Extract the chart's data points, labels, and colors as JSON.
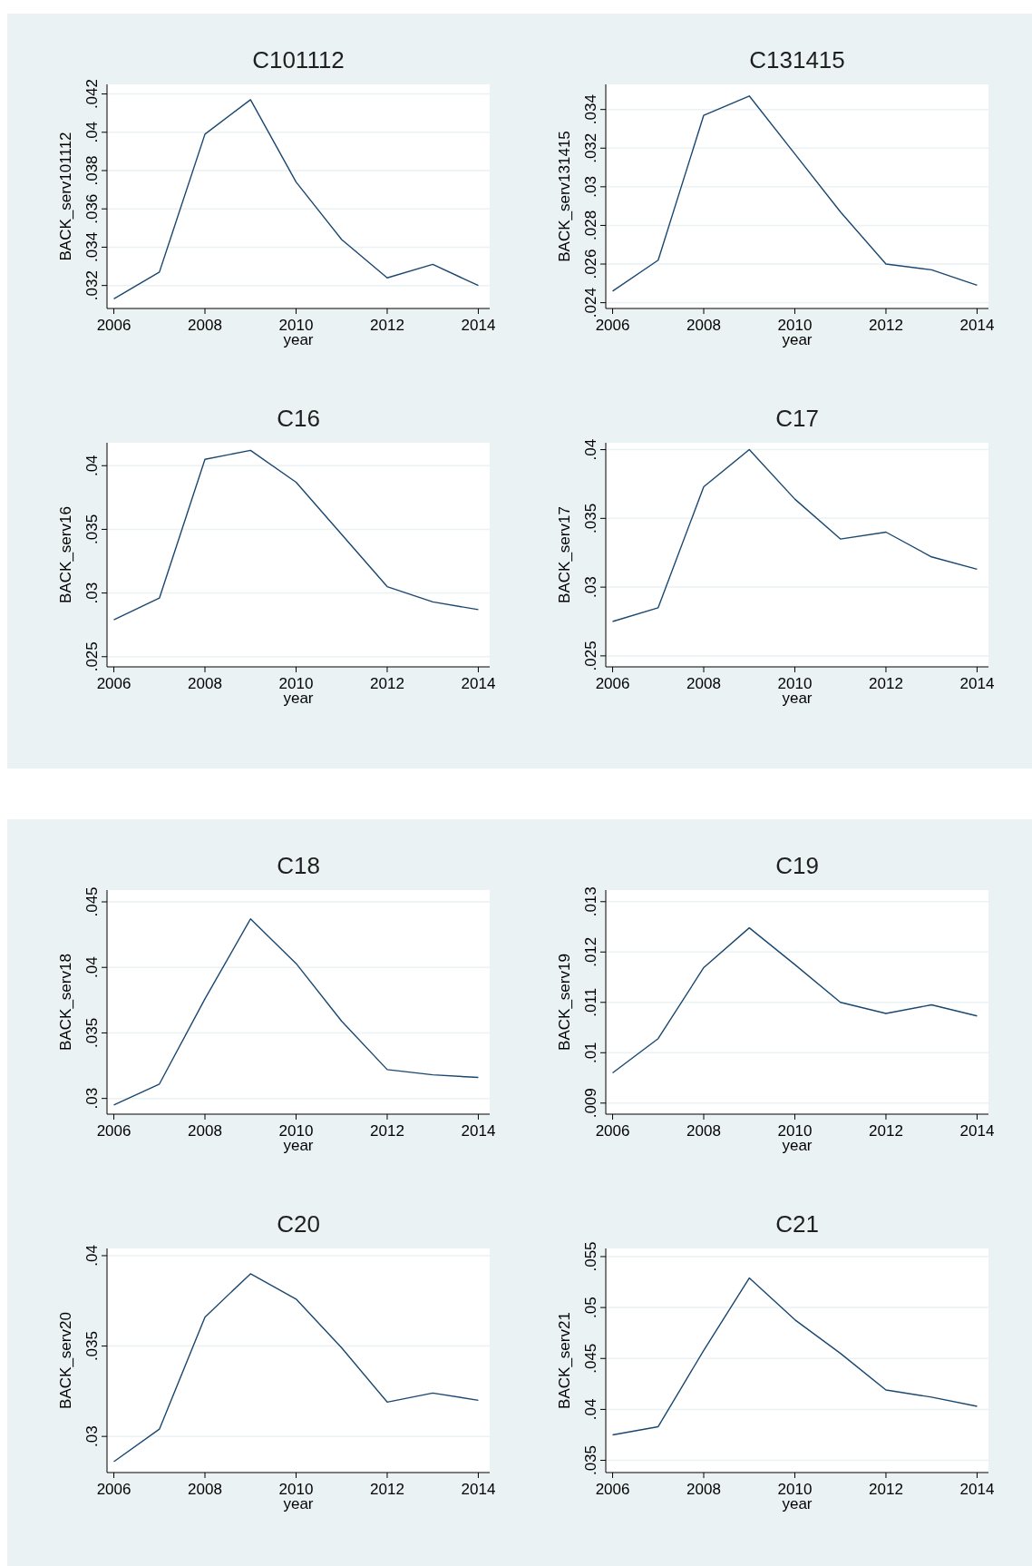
{
  "chart_data": [
    {
      "type": "line",
      "title": "C101112",
      "xlabel": "year",
      "ylabel": "BACK_serv101112",
      "x": [
        2006,
        2007,
        2008,
        2009,
        2010,
        2011,
        2012,
        2013,
        2014
      ],
      "values": [
        0.0313,
        0.0327,
        0.0399,
        0.0417,
        0.0374,
        0.0344,
        0.0324,
        0.0331,
        0.032
      ],
      "color": "#1a476f",
      "xlim": [
        2005.85,
        2014.25
      ],
      "xticks": [
        2006,
        2008,
        2010,
        2012,
        2014
      ],
      "ylim": [
        0.0308,
        0.0425
      ],
      "yticks": [
        {
          "value": 0.032,
          "label": ".032"
        },
        {
          "value": 0.034,
          "label": ".034"
        },
        {
          "value": 0.036,
          "label": ".036"
        },
        {
          "value": 0.038,
          "label": ".038"
        },
        {
          "value": 0.04,
          "label": ".04"
        },
        {
          "value": 0.042,
          "label": ".042"
        }
      ],
      "grid": "y"
    },
    {
      "type": "line",
      "title": "C131415",
      "xlabel": "year",
      "ylabel": "BACK_serv131415",
      "x": [
        2006,
        2007,
        2008,
        2009,
        2010,
        2011,
        2012,
        2013,
        2014
      ],
      "values": [
        0.0246,
        0.0262,
        0.0337,
        0.0347,
        0.0317,
        0.0287,
        0.026,
        0.0257,
        0.0249
      ],
      "color": "#1a476f",
      "xlim": [
        2005.85,
        2014.25
      ],
      "xticks": [
        2006,
        2008,
        2010,
        2012,
        2014
      ],
      "ylim": [
        0.0237,
        0.0353
      ],
      "yticks": [
        {
          "value": 0.024,
          "label": ".024"
        },
        {
          "value": 0.026,
          "label": ".026"
        },
        {
          "value": 0.028,
          "label": ".028"
        },
        {
          "value": 0.03,
          "label": ".03"
        },
        {
          "value": 0.032,
          "label": ".032"
        },
        {
          "value": 0.034,
          "label": ".034"
        }
      ],
      "grid": "y"
    },
    {
      "type": "line",
      "title": "C16",
      "xlabel": "year",
      "ylabel": "BACK_serv16",
      "x": [
        2006,
        2007,
        2008,
        2009,
        2010,
        2011,
        2012,
        2013,
        2014
      ],
      "values": [
        0.0279,
        0.0296,
        0.0405,
        0.0412,
        0.0387,
        0.0346,
        0.0305,
        0.0293,
        0.0287
      ],
      "color": "#1a476f",
      "xlim": [
        2005.85,
        2014.25
      ],
      "xticks": [
        2006,
        2008,
        2010,
        2012,
        2014
      ],
      "ylim": [
        0.0242,
        0.0418
      ],
      "yticks": [
        {
          "value": 0.025,
          "label": ".025"
        },
        {
          "value": 0.03,
          "label": ".03"
        },
        {
          "value": 0.035,
          "label": ".035"
        },
        {
          "value": 0.04,
          "label": ".04"
        }
      ],
      "grid": "y"
    },
    {
      "type": "line",
      "title": "C17",
      "xlabel": "year",
      "ylabel": "BACK_serv17",
      "x": [
        2006,
        2007,
        2008,
        2009,
        2010,
        2011,
        2012,
        2013,
        2014
      ],
      "values": [
        0.0275,
        0.0285,
        0.0373,
        0.04,
        0.0364,
        0.0335,
        0.034,
        0.0322,
        0.0313
      ],
      "color": "#1a476f",
      "xlim": [
        2005.85,
        2014.25
      ],
      "xticks": [
        2006,
        2008,
        2010,
        2012,
        2014
      ],
      "ylim": [
        0.0242,
        0.0405
      ],
      "yticks": [
        {
          "value": 0.025,
          "label": ".025"
        },
        {
          "value": 0.03,
          "label": ".03"
        },
        {
          "value": 0.035,
          "label": ".035"
        },
        {
          "value": 0.04,
          "label": ".04"
        }
      ],
      "grid": "y"
    },
    {
      "type": "line",
      "title": "C18",
      "xlabel": "year",
      "ylabel": "BACK_serv18",
      "x": [
        2006,
        2007,
        2008,
        2009,
        2010,
        2011,
        2012,
        2013,
        2014
      ],
      "values": [
        0.0295,
        0.0311,
        0.0376,
        0.0437,
        0.0403,
        0.0359,
        0.0322,
        0.0318,
        0.0316
      ],
      "color": "#1a476f",
      "xlim": [
        2005.85,
        2014.25
      ],
      "xticks": [
        2006,
        2008,
        2010,
        2012,
        2014
      ],
      "ylim": [
        0.0288,
        0.0459
      ],
      "yticks": [
        {
          "value": 0.03,
          "label": ".03"
        },
        {
          "value": 0.035,
          "label": ".035"
        },
        {
          "value": 0.04,
          "label": ".04"
        },
        {
          "value": 0.045,
          "label": ".045"
        }
      ],
      "grid": "y"
    },
    {
      "type": "line",
      "title": "C19",
      "xlabel": "year",
      "ylabel": "BACK_serv19",
      "x": [
        2006,
        2007,
        2008,
        2009,
        2010,
        2011,
        2012,
        2013,
        2014
      ],
      "values": [
        0.0096,
        0.01028,
        0.01169,
        0.01248,
        0.01175,
        0.011,
        0.01078,
        0.01095,
        0.01073
      ],
      "color": "#1a476f",
      "xlim": [
        2005.85,
        2014.25
      ],
      "xticks": [
        2006,
        2008,
        2010,
        2012,
        2014
      ],
      "ylim": [
        0.00878,
        0.01323
      ],
      "yticks": [
        {
          "value": 0.009,
          "label": ".009"
        },
        {
          "value": 0.01,
          "label": ".01"
        },
        {
          "value": 0.011,
          "label": ".011"
        },
        {
          "value": 0.012,
          "label": ".012"
        },
        {
          "value": 0.013,
          "label": ".013"
        }
      ],
      "grid": "y"
    },
    {
      "type": "line",
      "title": "C20",
      "xlabel": "year",
      "ylabel": "BACK_serv20",
      "x": [
        2006,
        2007,
        2008,
        2009,
        2010,
        2011,
        2012,
        2013,
        2014
      ],
      "values": [
        0.0286,
        0.0304,
        0.0366,
        0.039,
        0.0376,
        0.0349,
        0.0319,
        0.0324,
        0.032
      ],
      "color": "#1a476f",
      "xlim": [
        2005.85,
        2014.25
      ],
      "xticks": [
        2006,
        2008,
        2010,
        2012,
        2014
      ],
      "ylim": [
        0.028,
        0.0404
      ],
      "yticks": [
        {
          "value": 0.03,
          "label": ".03"
        },
        {
          "value": 0.035,
          "label": ".035"
        },
        {
          "value": 0.04,
          "label": ".04"
        }
      ],
      "grid": "y"
    },
    {
      "type": "line",
      "title": "C21",
      "xlabel": "year",
      "ylabel": "BACK_serv21",
      "x": [
        2006,
        2007,
        2008,
        2009,
        2010,
        2011,
        2012,
        2013,
        2014
      ],
      "values": [
        0.0375,
        0.0383,
        0.0458,
        0.0529,
        0.0488,
        0.0455,
        0.0419,
        0.0412,
        0.0403
      ],
      "color": "#1a476f",
      "xlim": [
        2005.85,
        2014.25
      ],
      "xticks": [
        2006,
        2008,
        2010,
        2012,
        2014
      ],
      "ylim": [
        0.0338,
        0.0558
      ],
      "yticks": [
        {
          "value": 0.035,
          "label": ".035"
        },
        {
          "value": 0.04,
          "label": ".04"
        },
        {
          "value": 0.045,
          "label": ".045"
        },
        {
          "value": 0.05,
          "label": ".05"
        },
        {
          "value": 0.055,
          "label": ".055"
        }
      ],
      "grid": "y"
    }
  ]
}
